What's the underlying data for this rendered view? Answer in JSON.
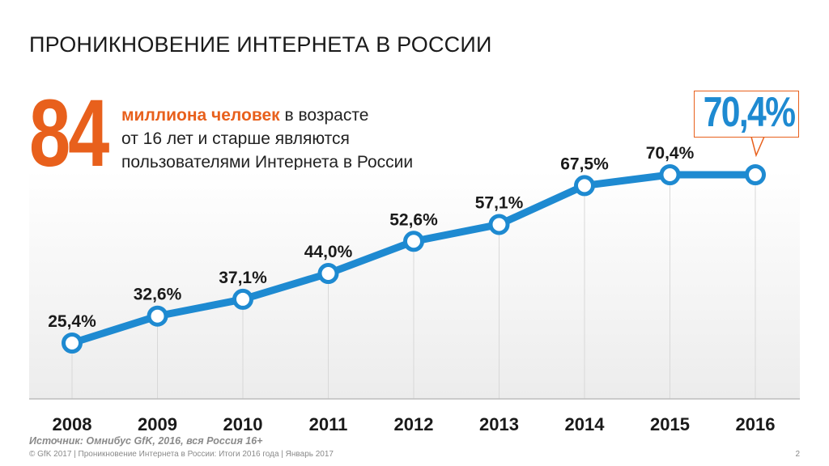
{
  "slide": {
    "title": "ПРОНИКНОВЕНИЕ ИНТЕРНЕТА В РОССИИ",
    "big_number": "84",
    "headline_accent": "миллиона человек",
    "headline_rest_1": " в возрасте",
    "headline_line_2": "от 16 лет и старше являются",
    "headline_line_3": "пользователями Интернета в России",
    "callout_value": "70,4%",
    "source": "Источник: Омнибус GfK, 2016, вся Россия 16+",
    "footer": "© GfK 2017 | Проникновение Интернета в России: Итоги 2016 года | Январь 2017",
    "page_number": "2"
  },
  "colors": {
    "accent_orange": "#e8601c",
    "line_blue": "#1e8ad1",
    "text_dark": "#1a1a1a",
    "gray_text": "#8a8a8a"
  },
  "chart_data": {
    "type": "line",
    "categories": [
      "2008",
      "2009",
      "2010",
      "2011",
      "2012",
      "2013",
      "2014",
      "2015",
      "2016"
    ],
    "values": [
      25.4,
      32.6,
      37.1,
      44.0,
      52.6,
      57.1,
      67.5,
      70.4,
      70.4
    ],
    "data_labels": [
      "25,4%",
      "32,6%",
      "37,1%",
      "44,0%",
      "52,6%",
      "57,1%",
      "67,5%",
      "70,4%",
      ""
    ],
    "grid": "vertical",
    "legend": "none"
  }
}
